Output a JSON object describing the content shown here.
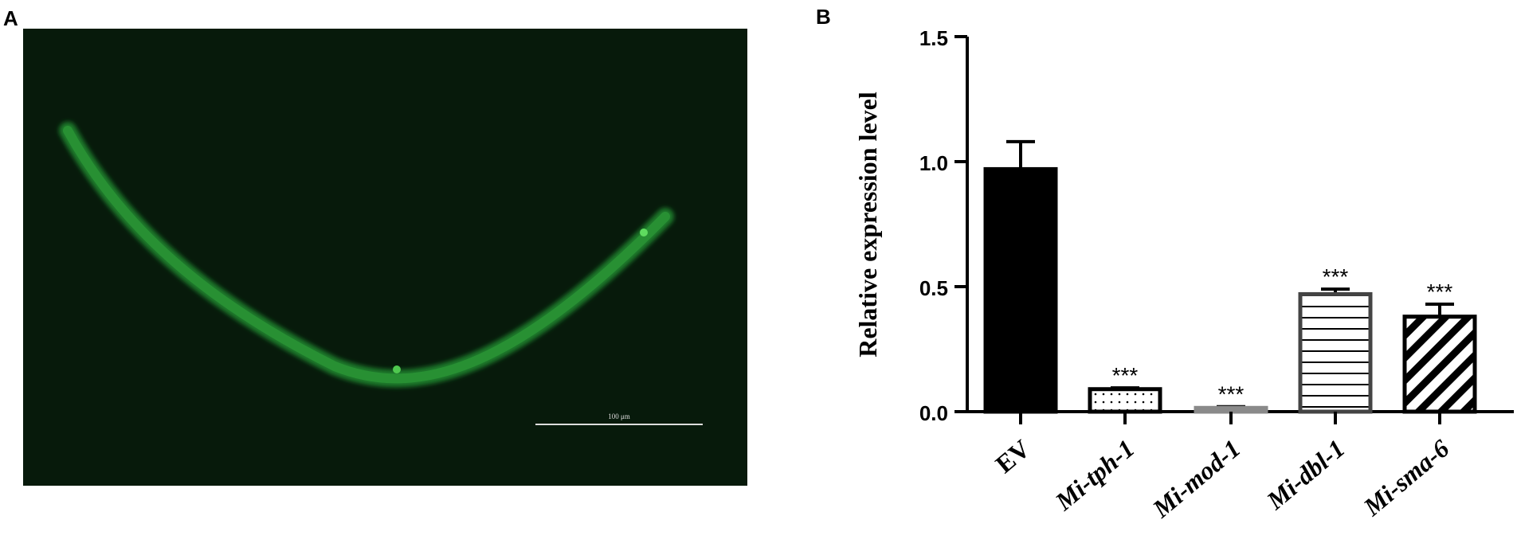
{
  "panel_a": {
    "label": "A",
    "scale_bar_label": "100 μm"
  },
  "chart_data": {
    "type": "bar",
    "panel_label": "B",
    "y_label": "Relative expression level",
    "categories": [
      "EV",
      "Mi-tph-1",
      "Mi-mod-1",
      "Mi-dbl-1",
      "Mi-sma-6"
    ],
    "italic_labels": [
      false,
      true,
      true,
      true,
      true
    ],
    "values": [
      0.97,
      0.09,
      0.015,
      0.47,
      0.38
    ],
    "errors": [
      0.11,
      0.005,
      0.005,
      0.02,
      0.05
    ],
    "value_labels": [
      null,
      "***",
      "***",
      "***",
      "***"
    ],
    "bar_styles": [
      "solid",
      "dots",
      "solid",
      "horizontal-lines",
      "diagonal-lines"
    ],
    "colors": [
      "#000000",
      "#000000",
      "#8a8a8a",
      "#444444",
      "#000000"
    ],
    "ylim": [
      0,
      1.5
    ],
    "yticks": [
      {
        "value": 0,
        "label": "0.0"
      },
      {
        "value": 0.5,
        "label": "0.5"
      },
      {
        "value": 1,
        "label": "1.0"
      },
      {
        "value": 1.5,
        "label": "1.5"
      }
    ]
  }
}
